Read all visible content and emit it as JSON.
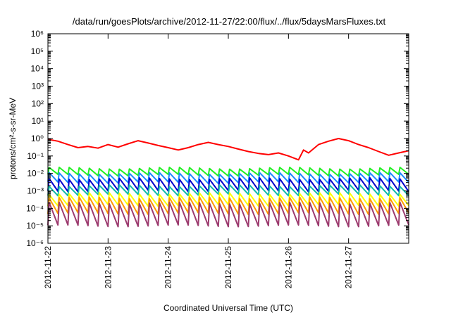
{
  "chart_data": {
    "type": "line",
    "title": "/data/run/goesPlots/archive/2012-11-27/22:00/flux/../flux/5daysMarsFluxes.txt",
    "xlabel": "Coordinated Universal Time (UTC)",
    "ylabel": "protons/cm²-s-sr-MeV",
    "yscale": "log",
    "ylim_exponents": [
      -6,
      6
    ],
    "y_ticks": [
      "10⁻⁶",
      "10⁻⁵",
      "10⁻⁴",
      "10⁻³",
      "10⁻²",
      "10⁻¹",
      "10⁰",
      "10¹",
      "10²",
      "10³",
      "10⁴",
      "10⁵",
      "10⁶"
    ],
    "xlim": [
      "2012-11-22",
      "2012-11-28"
    ],
    "x_ticks": [
      "2012-11-22",
      "2012-11-23",
      "2012-11-24",
      "2012-11-25",
      "2012-11-26",
      "2012-11-27"
    ],
    "grid": false,
    "legend": false,
    "series": [
      {
        "color": "#ff0000",
        "sawtooth": false,
        "values": [
          [
            "2012-11-22 00:00",
            0.9
          ],
          [
            "2012-11-22 04:00",
            0.7
          ],
          [
            "2012-11-22 08:00",
            0.45
          ],
          [
            "2012-11-22 12:00",
            0.3
          ],
          [
            "2012-11-22 16:00",
            0.35
          ],
          [
            "2012-11-22 20:00",
            0.28
          ],
          [
            "2012-11-23 00:00",
            0.45
          ],
          [
            "2012-11-23 04:00",
            0.32
          ],
          [
            "2012-11-23 08:00",
            0.5
          ],
          [
            "2012-11-23 12:00",
            0.75
          ],
          [
            "2012-11-23 16:00",
            0.55
          ],
          [
            "2012-11-23 20:00",
            0.4
          ],
          [
            "2012-11-24 00:00",
            0.3
          ],
          [
            "2012-11-24 04:00",
            0.22
          ],
          [
            "2012-11-24 08:00",
            0.3
          ],
          [
            "2012-11-24 12:00",
            0.45
          ],
          [
            "2012-11-24 16:00",
            0.6
          ],
          [
            "2012-11-24 20:00",
            0.45
          ],
          [
            "2012-11-25 00:00",
            0.35
          ],
          [
            "2012-11-25 04:00",
            0.25
          ],
          [
            "2012-11-25 08:00",
            0.18
          ],
          [
            "2012-11-25 12:00",
            0.14
          ],
          [
            "2012-11-25 16:00",
            0.12
          ],
          [
            "2012-11-25 20:00",
            0.15
          ],
          [
            "2012-11-26 00:00",
            0.1
          ],
          [
            "2012-11-26 04:00",
            0.06
          ],
          [
            "2012-11-26 06:00",
            0.22
          ],
          [
            "2012-11-26 08:00",
            0.15
          ],
          [
            "2012-11-26 12:00",
            0.45
          ],
          [
            "2012-11-26 16:00",
            0.7
          ],
          [
            "2012-11-26 20:00",
            1.0
          ],
          [
            "2012-11-27 00:00",
            0.75
          ],
          [
            "2012-11-27 04:00",
            0.45
          ],
          [
            "2012-11-27 08:00",
            0.3
          ],
          [
            "2012-11-27 12:00",
            0.18
          ],
          [
            "2012-11-27 16:00",
            0.11
          ],
          [
            "2012-11-27 20:00",
            0.15
          ],
          [
            "2012-11-28 00:00",
            0.2
          ]
        ]
      },
      {
        "color": "#22ee22",
        "sawtooth": true,
        "peak": 0.02,
        "trough": 0.008
      },
      {
        "color": "#1a8cff",
        "sawtooth": true,
        "peak": 0.01,
        "trough": 0.003
      },
      {
        "color": "#0000cc",
        "sawtooth": true,
        "peak": 0.005,
        "trough": 0.001
      },
      {
        "color": "#11bbaa",
        "sawtooth": true,
        "peak": 0.002,
        "trough": 0.0006
      },
      {
        "color": "#ffff00",
        "sawtooth": true,
        "peak": 0.0007,
        "trough": 0.00015
      },
      {
        "color": "#ff9900",
        "sawtooth": true,
        "peak": 0.0004,
        "trough": 5e-05
      },
      {
        "color": "#9c3a6e",
        "sawtooth": true,
        "peak": 0.0002,
        "trough": 1e-05
      }
    ]
  }
}
